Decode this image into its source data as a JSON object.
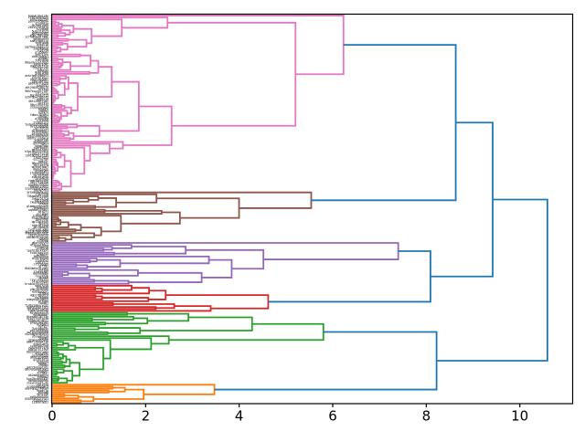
{
  "figure": {
    "background": "#ffffff",
    "plot_border_color": "#000000"
  },
  "axis": {
    "x_ticks": [
      0,
      2,
      4,
      6,
      8,
      10
    ],
    "x_lim": [
      0,
      11.12
    ],
    "tick_color": "#000000",
    "tick_label_color": "#000000",
    "y_tick_labels_legible": false
  },
  "chart_data": {
    "type": "dendrogram",
    "orientation": "right",
    "title": "",
    "xlabel": "",
    "ylabel": "",
    "grid": false,
    "legend": "none",
    "above_threshold_color": "#1f77b4",
    "leaf_labels": {
      "visible": true,
      "legible": false,
      "appearance": "hundreds of tiny overlapping labels forming a dense black band left of the axis"
    },
    "clusters": [
      {
        "name": "pink",
        "color": "#e377c2",
        "leaf_count": 91,
        "root_distance": 6.23
      },
      {
        "name": "brown",
        "color": "#8c564b",
        "leaf_count": 26,
        "root_distance": 5.54
      },
      {
        "name": "purple",
        "color": "#9467bd",
        "leaf_count": 22,
        "root_distance": 7.4
      },
      {
        "name": "red",
        "color": "#d62728",
        "leaf_count": 14,
        "root_distance": 4.62
      },
      {
        "name": "green",
        "color": "#2ca02c",
        "leaf_count": 37,
        "root_distance": 5.8
      },
      {
        "name": "orange",
        "color": "#ff7f0e",
        "leaf_count": 10,
        "root_distance": 3.47
      }
    ],
    "above_threshold_links": [
      {
        "id": "pink+brown",
        "children": [
          "pink",
          "brown"
        ],
        "distance": 8.63
      },
      {
        "id": "purple+red",
        "children": [
          "purple",
          "red"
        ],
        "distance": 8.09
      },
      {
        "id": "upper-branch",
        "children": [
          "pink+brown",
          "purple+red"
        ],
        "distance": 9.42
      },
      {
        "id": "green+orange",
        "children": [
          "green",
          "orange"
        ],
        "distance": 8.22
      },
      {
        "id": "root",
        "children": [
          "upper-branch",
          "green+orange"
        ],
        "distance": 10.59
      }
    ]
  }
}
